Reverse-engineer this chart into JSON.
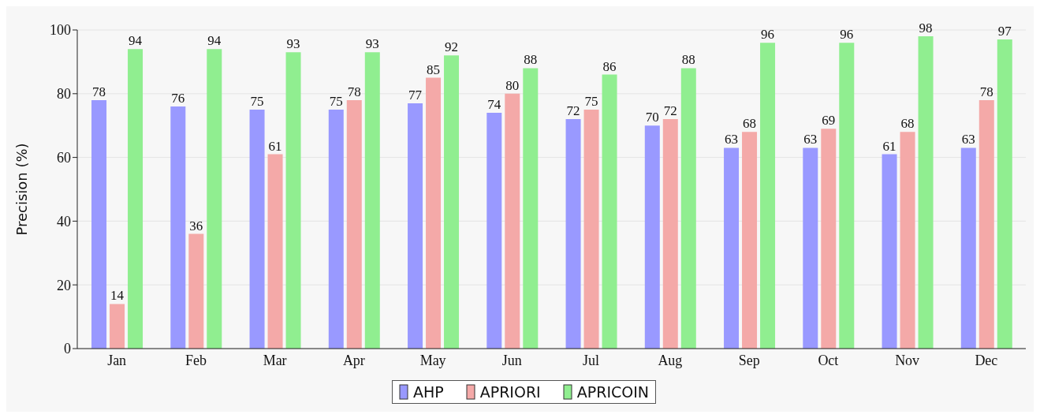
{
  "chart_data": {
    "type": "bar",
    "ylabel": "Precision (%)",
    "categories": [
      "Jan",
      "Feb",
      "Mar",
      "Apr",
      "May",
      "Jun",
      "Jul",
      "Aug",
      "Sep",
      "Oct",
      "Nov",
      "Dec"
    ],
    "series": [
      {
        "name": "AHP",
        "color": "#9999ff",
        "values": [
          78,
          76,
          75,
          75,
          77,
          74,
          72,
          70,
          63,
          63,
          61,
          63
        ]
      },
      {
        "name": "APRIORI",
        "color": "#f4a9a8",
        "values": [
          14,
          36,
          61,
          78,
          85,
          80,
          75,
          72,
          68,
          69,
          68,
          78
        ]
      },
      {
        "name": "APRICOIN",
        "color": "#90ee90",
        "values": [
          94,
          94,
          93,
          93,
          92,
          88,
          86,
          88,
          96,
          96,
          98,
          97
        ]
      }
    ],
    "ylim": [
      0,
      100
    ],
    "yticks": [
      0,
      20,
      40,
      60,
      80,
      100
    ],
    "grid": "y",
    "legend": "bottom",
    "data_labels": true
  }
}
